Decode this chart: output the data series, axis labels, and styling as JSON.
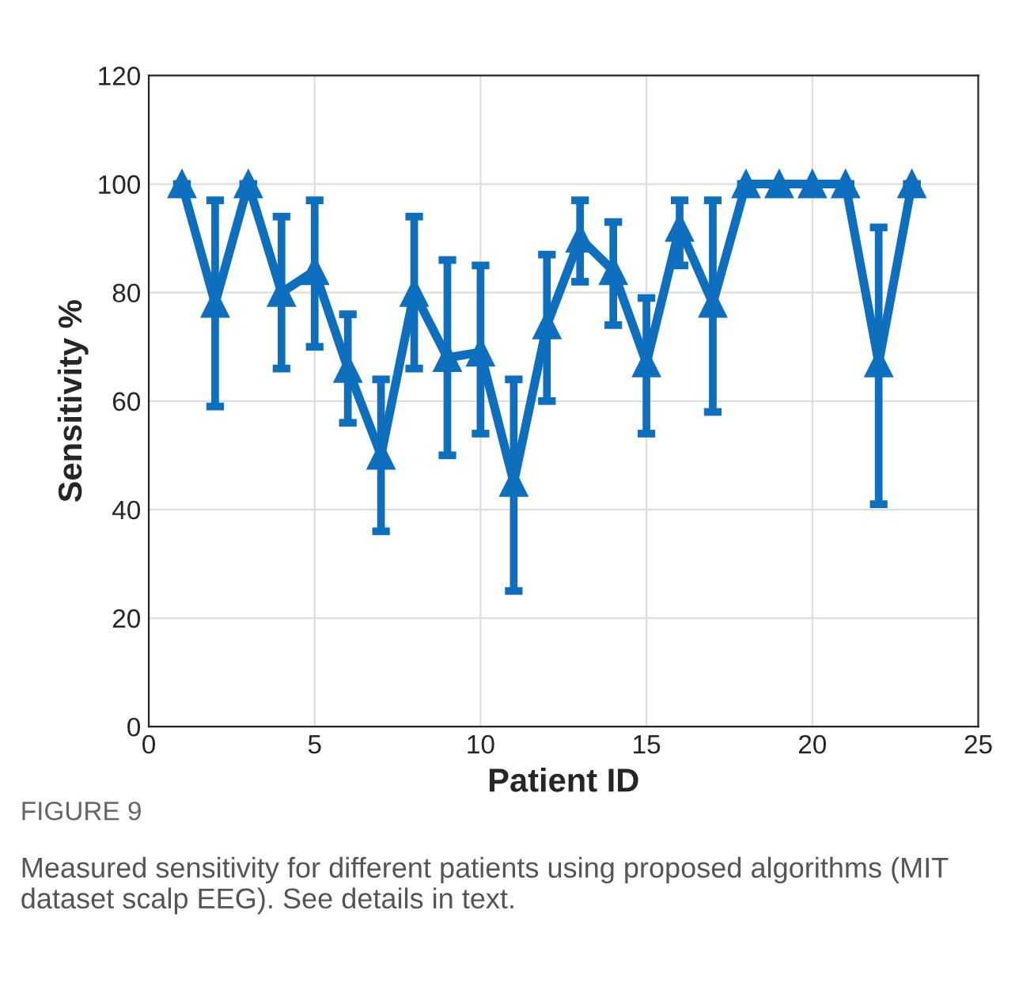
{
  "chart_data": {
    "type": "line",
    "xlabel": "Patient ID",
    "ylabel": "Sensitivity %",
    "x": [
      1,
      2,
      3,
      4,
      5,
      6,
      7,
      8,
      9,
      10,
      11,
      12,
      13,
      14,
      15,
      16,
      17,
      18,
      19,
      20,
      21,
      22,
      23
    ],
    "series": [
      {
        "color": "#0f6fbf",
        "values": [
          100,
          78,
          100,
          80,
          84,
          66,
          50,
          80,
          68,
          69,
          45,
          74,
          90,
          84,
          67,
          92,
          78,
          100,
          100,
          100,
          100,
          67,
          100
        ],
        "errors": [
          null,
          [
            59,
            97
          ],
          null,
          [
            66,
            94
          ],
          [
            70,
            97
          ],
          [
            56,
            76
          ],
          [
            36,
            64
          ],
          [
            66,
            94
          ],
          [
            50,
            86
          ],
          [
            54,
            85
          ],
          [
            25,
            64
          ],
          [
            60,
            87
          ],
          [
            82,
            97
          ],
          [
            74,
            93
          ],
          [
            54,
            79
          ],
          [
            85,
            97
          ],
          [
            58,
            97
          ],
          null,
          null,
          null,
          null,
          [
            41,
            92
          ],
          null
        ]
      }
    ],
    "xlim": [
      0,
      25
    ],
    "xticks": [
      0,
      5,
      10,
      15,
      20,
      25
    ],
    "ylim": [
      0,
      120
    ],
    "yticks": [
      0,
      20,
      40,
      60,
      80,
      100,
      120
    ],
    "grid": true,
    "marker": "triangle",
    "line_style": "solid",
    "annotations": [
      "FIGURE 9",
      "Measured sensitivity for different patients using proposed algorithms (MIT dataset scalp EEG). See details in text."
    ]
  }
}
